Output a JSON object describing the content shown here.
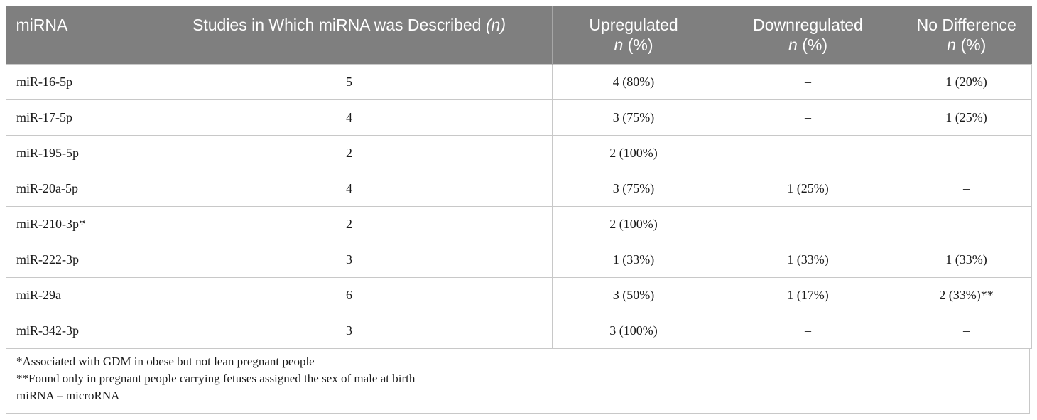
{
  "table": {
    "headers": [
      {
        "line1": "miRNA",
        "line2": ""
      },
      {
        "line1": "Studies in Which miRNA was Described ",
        "italic": "(n)",
        "line2": ""
      },
      {
        "line1": "Upregulated",
        "line2_italic": "n",
        "line2": " (%)"
      },
      {
        "line1": "Downregulated",
        "line2_italic": "n",
        "line2": " (%)"
      },
      {
        "line1": "No Difference",
        "line2_italic": "n",
        "line2": " (%)"
      }
    ],
    "rows": [
      [
        "miR-16-5p",
        "5",
        "4 (80%)",
        "–",
        "1 (20%)"
      ],
      [
        "miR-17-5p",
        "4",
        "3 (75%)",
        "–",
        "1 (25%)"
      ],
      [
        "miR-195-5p",
        "2",
        "2 (100%)",
        "–",
        "–"
      ],
      [
        "miR-20a-5p",
        "4",
        "3 (75%)",
        "1 (25%)",
        "–"
      ],
      [
        "miR-210-3p*",
        "2",
        "2 (100%)",
        "–",
        "–"
      ],
      [
        "miR-222-3p",
        "3",
        "1 (33%)",
        "1 (33%)",
        "1 (33%)"
      ],
      [
        "miR-29a",
        "6",
        "3 (50%)",
        "1 (17%)",
        "2 (33%)**"
      ],
      [
        "miR-342-3p",
        "3",
        "3 (100%)",
        "–",
        "–"
      ]
    ]
  },
  "footnotes": [
    "*Associated with GDM in obese but not lean pregnant people",
    "**Found only in pregnant people carrying fetuses assigned the sex of male at birth",
    "miRNA – microRNA"
  ]
}
